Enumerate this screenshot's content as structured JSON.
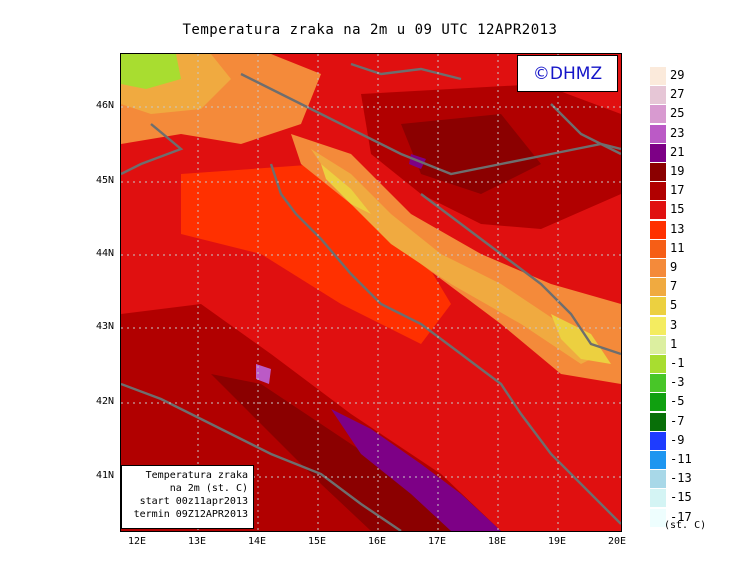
{
  "title": "Temperatura zraka na 2m u 09 UTC 12APR2013",
  "logo": "©DHMZ",
  "info_box": {
    "line1": "Temperatura zraka",
    "line2": "na 2m (st. C)",
    "line3": "start 00z11apr2013",
    "line4": "termin 09Z12APR2013"
  },
  "lat_labels": [
    "46N",
    "45N",
    "44N",
    "43N",
    "42N",
    "41N"
  ],
  "lon_labels": [
    "12E",
    "13E",
    "14E",
    "15E",
    "16E",
    "17E",
    "18E",
    "19E",
    "20E"
  ],
  "legend": {
    "unit": "(st. C)",
    "items": [
      {
        "label": "29",
        "color": "#fbeadb"
      },
      {
        "label": "27",
        "color": "#e6c6d6"
      },
      {
        "label": "25",
        "color": "#d89ad0"
      },
      {
        "label": "23",
        "color": "#bb5ac6"
      },
      {
        "label": "21",
        "color": "#7d0086"
      },
      {
        "label": "19",
        "color": "#8b0000"
      },
      {
        "label": "17",
        "color": "#b10000"
      },
      {
        "label": "15",
        "color": "#e01010"
      },
      {
        "label": "13",
        "color": "#ff3000"
      },
      {
        "label": "11",
        "color": "#f65e16"
      },
      {
        "label": "9",
        "color": "#f48a3a"
      },
      {
        "label": "7",
        "color": "#f0aa40"
      },
      {
        "label": "5",
        "color": "#ecd040"
      },
      {
        "label": "3",
        "color": "#f4ec60"
      },
      {
        "label": "1",
        "color": "#dcefa0"
      },
      {
        "label": "-1",
        "color": "#a8dd30"
      },
      {
        "label": "-3",
        "color": "#48c628"
      },
      {
        "label": "-5",
        "color": "#10a010"
      },
      {
        "label": "-7",
        "color": "#086f08"
      },
      {
        "label": "-9",
        "color": "#1e3cff"
      },
      {
        "label": "-11",
        "color": "#1e96f0"
      },
      {
        "label": "-13",
        "color": "#a8d8e8"
      },
      {
        "label": "-15",
        "color": "#d4f4f4"
      },
      {
        "label": "-17",
        "color": "#eefefe"
      }
    ]
  }
}
